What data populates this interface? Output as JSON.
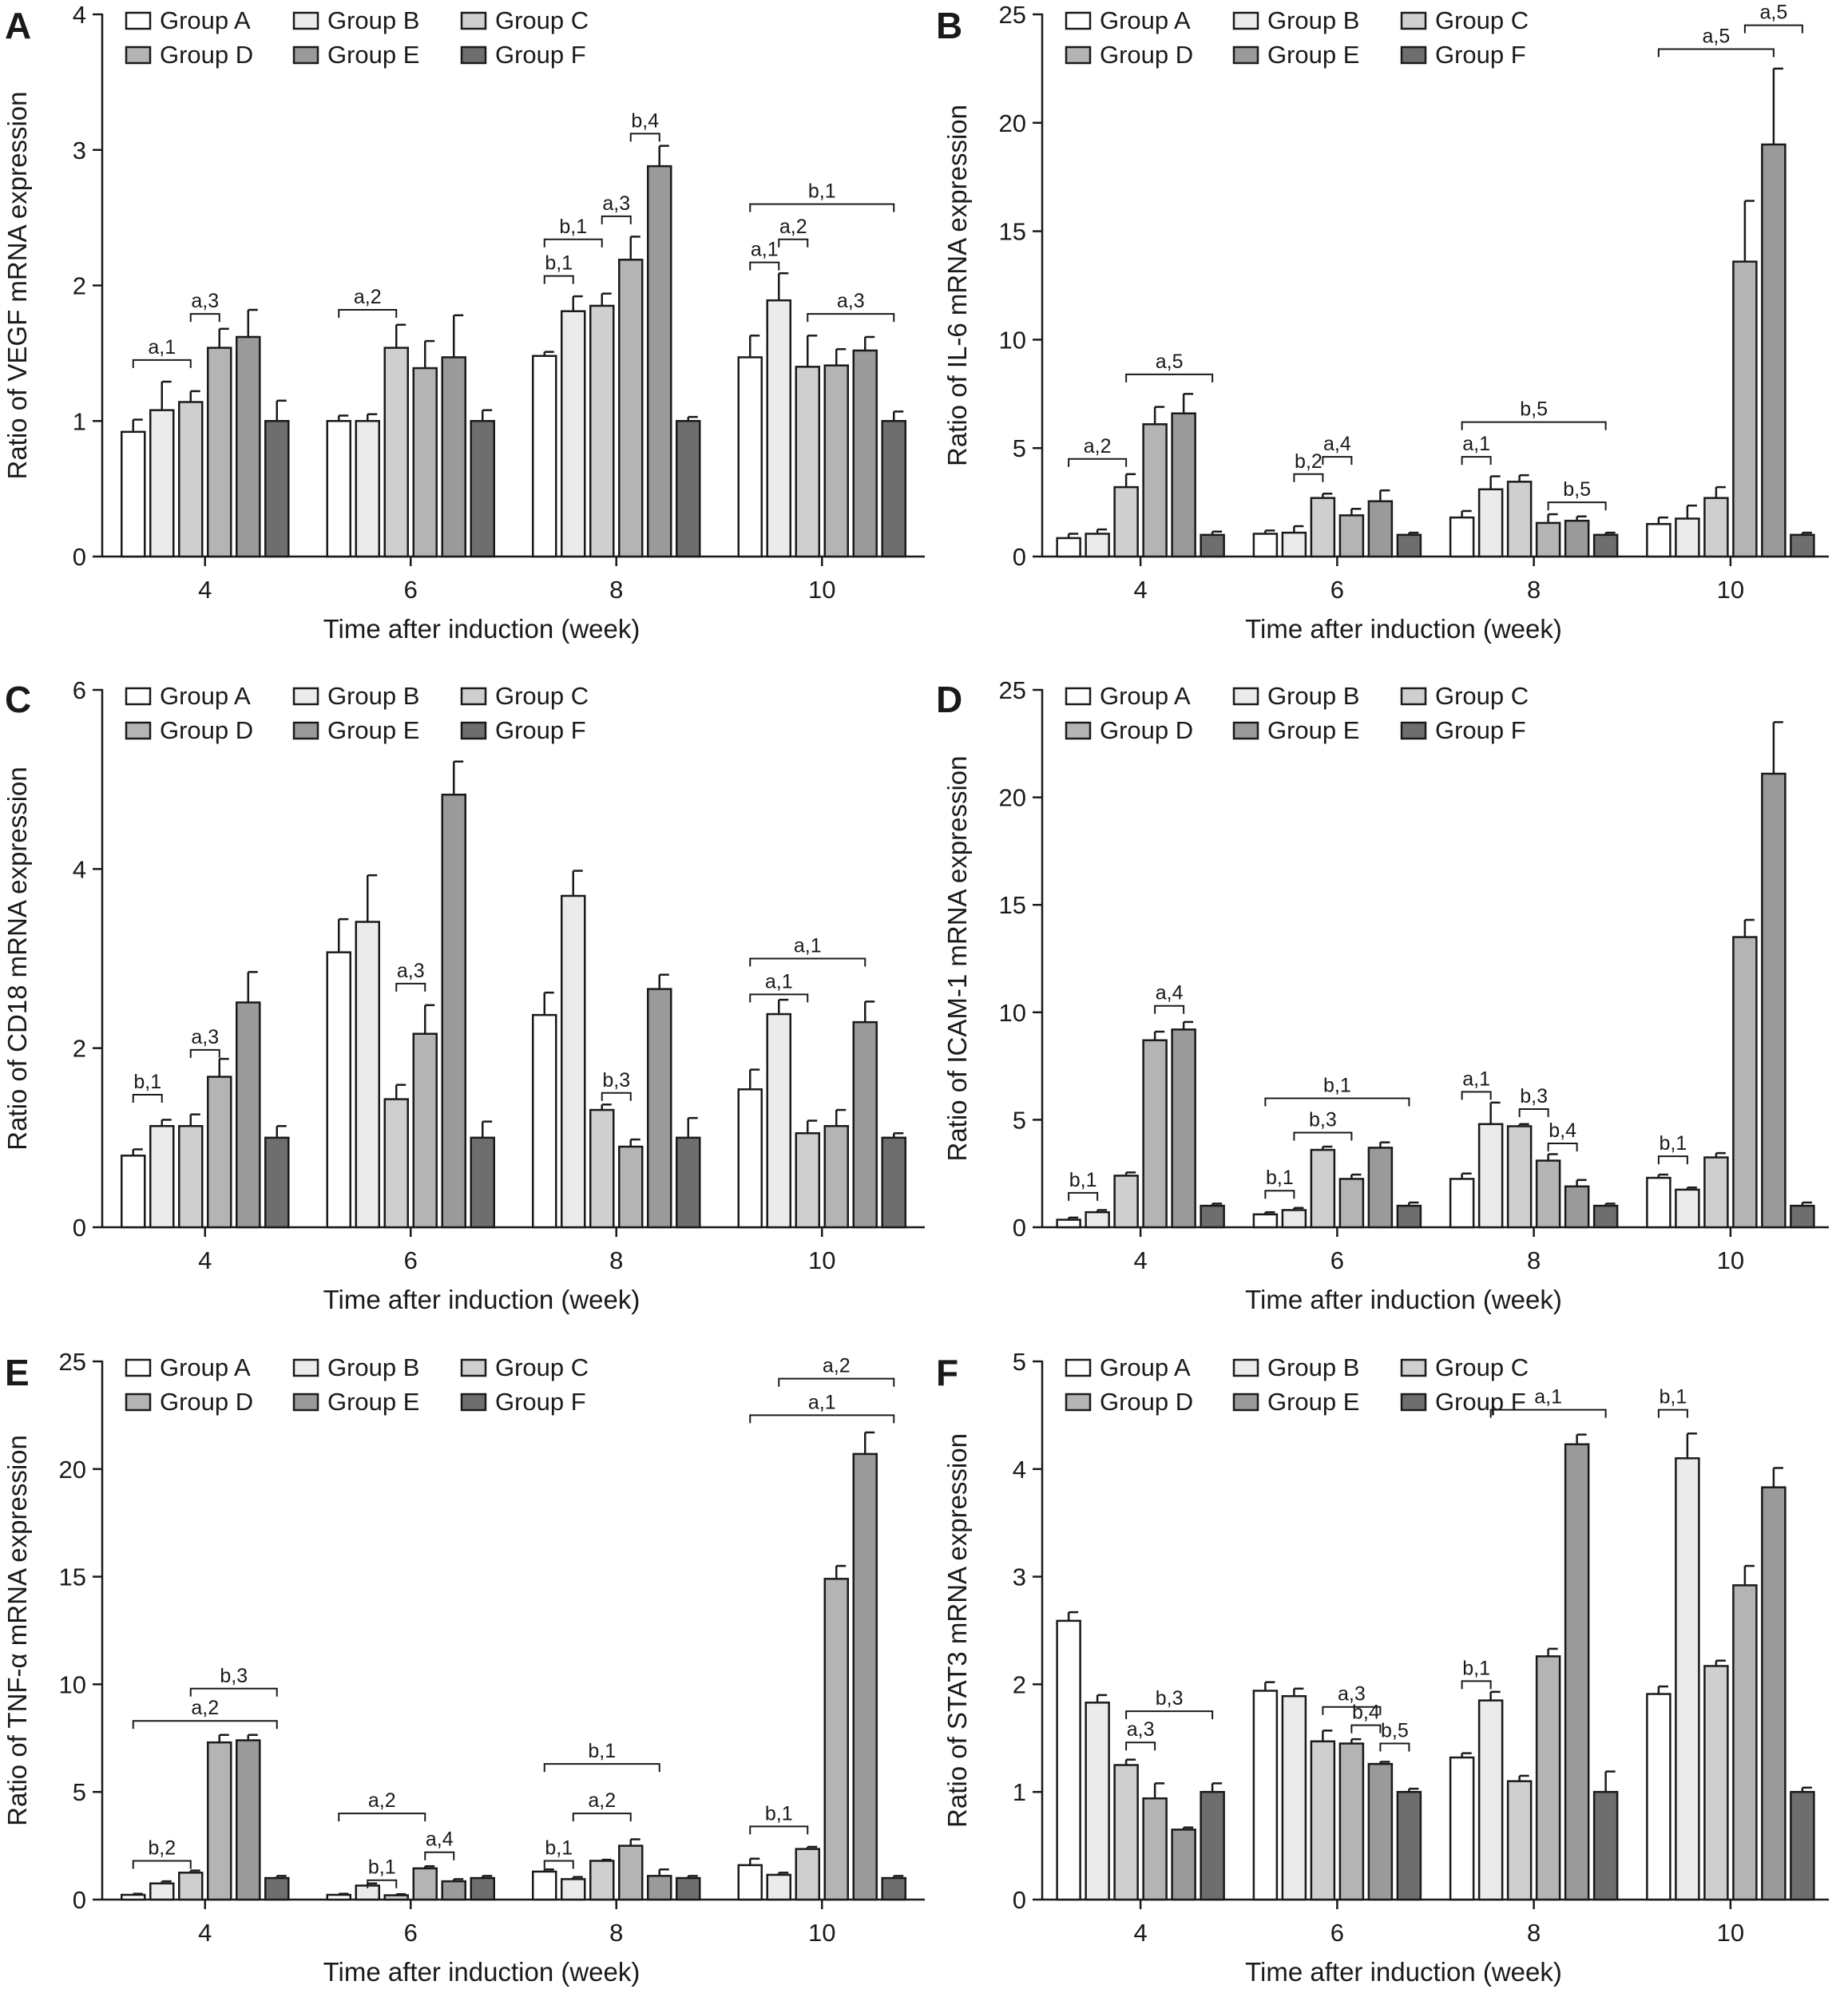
{
  "figure": {
    "legend_labels": [
      "Group A",
      "Group B",
      "Group C",
      "Group D",
      "Group E",
      "Group F"
    ],
    "group_colors": [
      "#ffffff",
      "#ebebeb",
      "#cfcfcf",
      "#b4b4b4",
      "#9a9a9a",
      "#6e6e6e"
    ]
  },
  "chart_data": [
    {
      "type": "bar",
      "panel_label": "A",
      "categories": [
        "4",
        "6",
        "8",
        "10"
      ],
      "xlabel": "Time after induction (week)",
      "ylabel": "Ratio of VEGF mRNA expression",
      "ylim": [
        0,
        4
      ],
      "yticks": [
        0,
        1,
        2,
        3,
        4
      ],
      "legend_position": "top-left",
      "series": [
        {
          "name": "Group A",
          "values": [
            0.92,
            1.0,
            1.48,
            1.47
          ],
          "errors": [
            0.09,
            0.04,
            0.03,
            0.16
          ]
        },
        {
          "name": "Group B",
          "values": [
            1.08,
            1.0,
            1.81,
            1.89
          ],
          "errors": [
            0.21,
            0.05,
            0.11,
            0.2
          ]
        },
        {
          "name": "Group C",
          "values": [
            1.14,
            1.54,
            1.85,
            1.4
          ],
          "errors": [
            0.08,
            0.17,
            0.09,
            0.23
          ]
        },
        {
          "name": "Group D",
          "values": [
            1.54,
            1.39,
            2.19,
            1.41
          ],
          "errors": [
            0.14,
            0.2,
            0.17,
            0.12
          ]
        },
        {
          "name": "Group E",
          "values": [
            1.62,
            1.47,
            2.88,
            1.52
          ],
          "errors": [
            0.2,
            0.31,
            0.15,
            0.1
          ]
        },
        {
          "name": "Group F",
          "values": [
            1.0,
            1.0,
            1.0,
            1.0
          ],
          "errors": [
            0.15,
            0.08,
            0.03,
            0.07
          ]
        }
      ],
      "annotations": [
        {
          "text": "a,1",
          "group": 0,
          "from": 0,
          "to": 2,
          "y": 1.45
        },
        {
          "text": "a,3",
          "group": 0,
          "from": 2,
          "to": 3,
          "y": 1.79
        },
        {
          "text": "a,2",
          "group": 1,
          "from": 0,
          "to": 2,
          "y": 1.82
        },
        {
          "text": "b,1",
          "group": 2,
          "from": 0,
          "to": 1,
          "y": 2.07
        },
        {
          "text": "b,1",
          "group": 2,
          "from": 0,
          "to": 2,
          "y": 2.34
        },
        {
          "text": "a,3",
          "group": 2,
          "from": 2,
          "to": 3,
          "y": 2.51
        },
        {
          "text": "b,4",
          "group": 2,
          "from": 3,
          "to": 4,
          "y": 3.12
        },
        {
          "text": "a,1",
          "group": 3,
          "from": 0,
          "to": 1,
          "y": 2.17
        },
        {
          "text": "a,2",
          "group": 3,
          "from": 1,
          "to": 2,
          "y": 2.34
        },
        {
          "text": "b,1",
          "group": 3,
          "from": 0,
          "to": 5,
          "y": 2.6
        },
        {
          "text": "a,3",
          "group": 3,
          "from": 2,
          "to": 5,
          "y": 1.79
        }
      ]
    },
    {
      "type": "bar",
      "panel_label": "B",
      "categories": [
        "4",
        "6",
        "8",
        "10"
      ],
      "xlabel": "Time after induction (week)",
      "ylabel": "Ratio of IL-6 mRNA expression",
      "ylim": [
        0,
        25
      ],
      "yticks": [
        0,
        5,
        10,
        15,
        20,
        25
      ],
      "legend_position": "top-left",
      "series": [
        {
          "name": "Group A",
          "values": [
            0.85,
            1.05,
            1.8,
            1.5
          ],
          "errors": [
            0.2,
            0.15,
            0.3,
            0.3
          ]
        },
        {
          "name": "Group B",
          "values": [
            1.05,
            1.1,
            3.1,
            1.75
          ],
          "errors": [
            0.2,
            0.3,
            0.6,
            0.6
          ]
        },
        {
          "name": "Group C",
          "values": [
            3.2,
            2.7,
            3.45,
            2.7
          ],
          "errors": [
            0.6,
            0.2,
            0.3,
            0.5
          ]
        },
        {
          "name": "Group D",
          "values": [
            6.1,
            1.9,
            1.55,
            13.6
          ],
          "errors": [
            0.8,
            0.3,
            0.4,
            2.8
          ]
        },
        {
          "name": "Group E",
          "values": [
            6.6,
            2.55,
            1.65,
            19.0
          ],
          "errors": [
            0.9,
            0.5,
            0.2,
            3.5
          ]
        },
        {
          "name": "Group F",
          "values": [
            1.0,
            1.0,
            1.0,
            1.0
          ],
          "errors": [
            0.15,
            0.1,
            0.1,
            0.1
          ]
        }
      ],
      "annotations": [
        {
          "text": "a,2",
          "group": 0,
          "from": 0,
          "to": 2,
          "y": 4.5
        },
        {
          "text": "a,5",
          "group": 0,
          "from": 2,
          "to": 5,
          "y": 8.4
        },
        {
          "text": "b,2",
          "group": 1,
          "from": 1,
          "to": 2,
          "y": 3.8
        },
        {
          "text": "a,4",
          "group": 1,
          "from": 2,
          "to": 3,
          "y": 4.6
        },
        {
          "text": "a,1",
          "group": 2,
          "from": 0,
          "to": 1,
          "y": 4.6
        },
        {
          "text": "b,5",
          "group": 2,
          "from": 0,
          "to": 5,
          "y": 6.2
        },
        {
          "text": "b,5",
          "group": 2,
          "from": 3,
          "to": 5,
          "y": 2.5
        },
        {
          "text": "a,5",
          "group": 3,
          "from": 0,
          "to": 4,
          "y": 23.4
        },
        {
          "text": "a,5",
          "group": 3,
          "from": 3,
          "to": 5,
          "y": 24.5
        }
      ]
    },
    {
      "type": "bar",
      "panel_label": "C",
      "categories": [
        "4",
        "6",
        "8",
        "10"
      ],
      "xlabel": "Time after induction (week)",
      "ylabel": "Ratio of CD18 mRNA expression",
      "ylim": [
        0,
        6
      ],
      "yticks": [
        0,
        2,
        4,
        6
      ],
      "legend_position": "top-left",
      "series": [
        {
          "name": "Group A",
          "values": [
            0.8,
            3.07,
            2.37,
            1.54
          ],
          "errors": [
            0.07,
            0.37,
            0.25,
            0.22
          ]
        },
        {
          "name": "Group B",
          "values": [
            1.13,
            3.41,
            3.7,
            2.38
          ],
          "errors": [
            0.07,
            0.52,
            0.28,
            0.16
          ]
        },
        {
          "name": "Group C",
          "values": [
            1.13,
            1.43,
            1.31,
            1.05
          ],
          "errors": [
            0.13,
            0.16,
            0.06,
            0.14
          ]
        },
        {
          "name": "Group D",
          "values": [
            1.68,
            2.16,
            0.9,
            1.13
          ],
          "errors": [
            0.2,
            0.32,
            0.08,
            0.18
          ]
        },
        {
          "name": "Group E",
          "values": [
            2.51,
            4.83,
            2.66,
            2.29
          ],
          "errors": [
            0.34,
            0.37,
            0.16,
            0.23
          ]
        },
        {
          "name": "Group F",
          "values": [
            1.0,
            1.0,
            1.0,
            1.0
          ],
          "errors": [
            0.13,
            0.18,
            0.22,
            0.05
          ]
        }
      ],
      "annotations": [
        {
          "text": "b,1",
          "group": 0,
          "from": 0,
          "to": 1,
          "y": 1.48
        },
        {
          "text": "a,3",
          "group": 0,
          "from": 2,
          "to": 3,
          "y": 1.98
        },
        {
          "text": "a,3",
          "group": 1,
          "from": 2,
          "to": 3,
          "y": 2.72
        },
        {
          "text": "b,3",
          "group": 2,
          "from": 2,
          "to": 3,
          "y": 1.5
        },
        {
          "text": "a,1",
          "group": 3,
          "from": 0,
          "to": 2,
          "y": 2.6
        },
        {
          "text": "a,1",
          "group": 3,
          "from": 0,
          "to": 4,
          "y": 3.0
        }
      ]
    },
    {
      "type": "bar",
      "panel_label": "D",
      "categories": [
        "4",
        "6",
        "8",
        "10"
      ],
      "xlabel": "Time after induction (week)",
      "ylabel": "Ratio of ICAM-1 mRNA expression",
      "ylim": [
        0,
        25
      ],
      "yticks": [
        0,
        5,
        10,
        15,
        20,
        25
      ],
      "legend_position": "top-left",
      "series": [
        {
          "name": "Group A",
          "values": [
            0.35,
            0.6,
            2.25,
            2.3
          ],
          "errors": [
            0.1,
            0.1,
            0.25,
            0.15
          ]
        },
        {
          "name": "Group B",
          "values": [
            0.7,
            0.8,
            4.8,
            1.75
          ],
          "errors": [
            0.1,
            0.1,
            1.0,
            0.1
          ]
        },
        {
          "name": "Group C",
          "values": [
            2.4,
            3.6,
            4.7,
            3.25
          ],
          "errors": [
            0.15,
            0.15,
            0.1,
            0.2
          ]
        },
        {
          "name": "Group D",
          "values": [
            8.7,
            2.25,
            3.1,
            13.5
          ],
          "errors": [
            0.4,
            0.2,
            0.3,
            0.8
          ]
        },
        {
          "name": "Group E",
          "values": [
            9.2,
            3.7,
            1.9,
            21.1
          ],
          "errors": [
            0.35,
            0.25,
            0.3,
            2.4
          ]
        },
        {
          "name": "Group F",
          "values": [
            1.0,
            1.0,
            1.0,
            1.0
          ],
          "errors": [
            0.1,
            0.15,
            0.1,
            0.15
          ]
        }
      ],
      "annotations": [
        {
          "text": "b,1",
          "group": 0,
          "from": 0,
          "to": 1,
          "y": 1.6
        },
        {
          "text": "a,4",
          "group": 0,
          "from": 3,
          "to": 4,
          "y": 10.3
        },
        {
          "text": "b,1",
          "group": 1,
          "from": 0,
          "to": 1,
          "y": 1.7
        },
        {
          "text": "b,3",
          "group": 1,
          "from": 1,
          "to": 3,
          "y": 4.4
        },
        {
          "text": "b,1",
          "group": 1,
          "from": 0,
          "to": 5,
          "y": 6.0
        },
        {
          "text": "a,1",
          "group": 2,
          "from": 0,
          "to": 1,
          "y": 6.3
        },
        {
          "text": "b,3",
          "group": 2,
          "from": 2,
          "to": 3,
          "y": 5.5
        },
        {
          "text": "b,4",
          "group": 2,
          "from": 3,
          "to": 4,
          "y": 3.9
        },
        {
          "text": "b,1",
          "group": 3,
          "from": 0,
          "to": 1,
          "y": 3.3
        }
      ]
    },
    {
      "type": "bar",
      "panel_label": "E",
      "categories": [
        "4",
        "6",
        "8",
        "10"
      ],
      "xlabel": "Time after induction (week)",
      "ylabel": "Ratio of TNF-α mRNA expression",
      "ylim": [
        0,
        25
      ],
      "yticks": [
        0,
        5,
        10,
        15,
        20,
        25
      ],
      "legend_position": "top-left",
      "series": [
        {
          "name": "Group A",
          "values": [
            0.22,
            0.22,
            1.3,
            1.6
          ],
          "errors": [
            0.05,
            0.05,
            0.1,
            0.3
          ]
        },
        {
          "name": "Group B",
          "values": [
            0.75,
            0.65,
            0.95,
            1.15
          ],
          "errors": [
            0.1,
            0.1,
            0.1,
            0.1
          ]
        },
        {
          "name": "Group C",
          "values": [
            1.25,
            0.2,
            1.8,
            2.35
          ],
          "errors": [
            0.1,
            0.05,
            0.05,
            0.1
          ]
        },
        {
          "name": "Group D",
          "values": [
            7.3,
            1.45,
            2.5,
            14.9
          ],
          "errors": [
            0.35,
            0.1,
            0.3,
            0.6
          ]
        },
        {
          "name": "Group E",
          "values": [
            7.4,
            0.85,
            1.1,
            20.7
          ],
          "errors": [
            0.25,
            0.1,
            0.3,
            1.0
          ]
        },
        {
          "name": "Group F",
          "values": [
            1.0,
            1.0,
            1.0,
            1.0
          ],
          "errors": [
            0.1,
            0.1,
            0.1,
            0.1
          ]
        }
      ],
      "annotations": [
        {
          "text": "b,2",
          "group": 0,
          "from": 0,
          "to": 2,
          "y": 1.8
        },
        {
          "text": "a,2",
          "group": 0,
          "from": 0,
          "to": 5,
          "y": 8.3
        },
        {
          "text": "b,3",
          "group": 0,
          "from": 2,
          "to": 5,
          "y": 9.8
        },
        {
          "text": "b,1",
          "group": 1,
          "from": 1,
          "to": 2,
          "y": 0.9
        },
        {
          "text": "a,2",
          "group": 1,
          "from": 0,
          "to": 3,
          "y": 4.0
        },
        {
          "text": "a,4",
          "group": 1,
          "from": 3,
          "to": 4,
          "y": 2.2
        },
        {
          "text": "b,1",
          "group": 2,
          "from": 0,
          "to": 1,
          "y": 1.8
        },
        {
          "text": "a,2",
          "group": 2,
          "from": 1,
          "to": 3,
          "y": 4.0
        },
        {
          "text": "b,1",
          "group": 2,
          "from": 0,
          "to": 4,
          "y": 6.3
        },
        {
          "text": "b,1",
          "group": 3,
          "from": 0,
          "to": 2,
          "y": 3.4
        },
        {
          "text": "a,1",
          "group": 3,
          "from": 0,
          "to": 5,
          "y": 22.5
        },
        {
          "text": "a,2",
          "group": 3,
          "from": 1,
          "to": 5,
          "y": 24.2
        }
      ]
    },
    {
      "type": "bar",
      "panel_label": "F",
      "categories": [
        "4",
        "6",
        "8",
        "10"
      ],
      "xlabel": "Time after induction (week)",
      "ylabel": "Ratio of STAT3 mRNA expression",
      "ylim": [
        0,
        5
      ],
      "yticks": [
        0,
        1,
        2,
        3,
        4,
        5
      ],
      "legend_position": "top-left",
      "series": [
        {
          "name": "Group A",
          "values": [
            2.59,
            1.94,
            1.32,
            1.91
          ],
          "errors": [
            0.08,
            0.08,
            0.04,
            0.07
          ]
        },
        {
          "name": "Group B",
          "values": [
            1.83,
            1.89,
            1.85,
            4.1
          ],
          "errors": [
            0.07,
            0.07,
            0.08,
            0.23
          ]
        },
        {
          "name": "Group C",
          "values": [
            1.25,
            1.47,
            1.1,
            2.17
          ],
          "errors": [
            0.05,
            0.1,
            0.05,
            0.05
          ]
        },
        {
          "name": "Group D",
          "values": [
            0.94,
            1.45,
            2.26,
            2.92
          ],
          "errors": [
            0.14,
            0.04,
            0.07,
            0.18
          ]
        },
        {
          "name": "Group E",
          "values": [
            0.65,
            1.26,
            4.23,
            3.83
          ],
          "errors": [
            0.02,
            0.02,
            0.09,
            0.18
          ]
        },
        {
          "name": "Group F",
          "values": [
            1.0,
            1.0,
            1.0,
            1.0
          ],
          "errors": [
            0.08,
            0.03,
            0.19,
            0.04
          ]
        }
      ],
      "annotations": [
        {
          "text": "a,3",
          "group": 0,
          "from": 2,
          "to": 3,
          "y": 1.46
        },
        {
          "text": "b,3",
          "group": 0,
          "from": 2,
          "to": 5,
          "y": 1.75
        },
        {
          "text": "a,3",
          "group": 1,
          "from": 2,
          "to": 4,
          "y": 1.79
        },
        {
          "text": "b,4",
          "group": 1,
          "from": 3,
          "to": 4,
          "y": 1.62
        },
        {
          "text": "b,5",
          "group": 1,
          "from": 4,
          "to": 5,
          "y": 1.45
        },
        {
          "text": "b,1",
          "group": 2,
          "from": 0,
          "to": 1,
          "y": 2.03
        },
        {
          "text": "a,1",
          "group": 2,
          "from": 1,
          "to": 5,
          "y": 4.55
        },
        {
          "text": "b,1",
          "group": 3,
          "from": 0,
          "to": 1,
          "y": 4.55
        }
      ]
    }
  ]
}
